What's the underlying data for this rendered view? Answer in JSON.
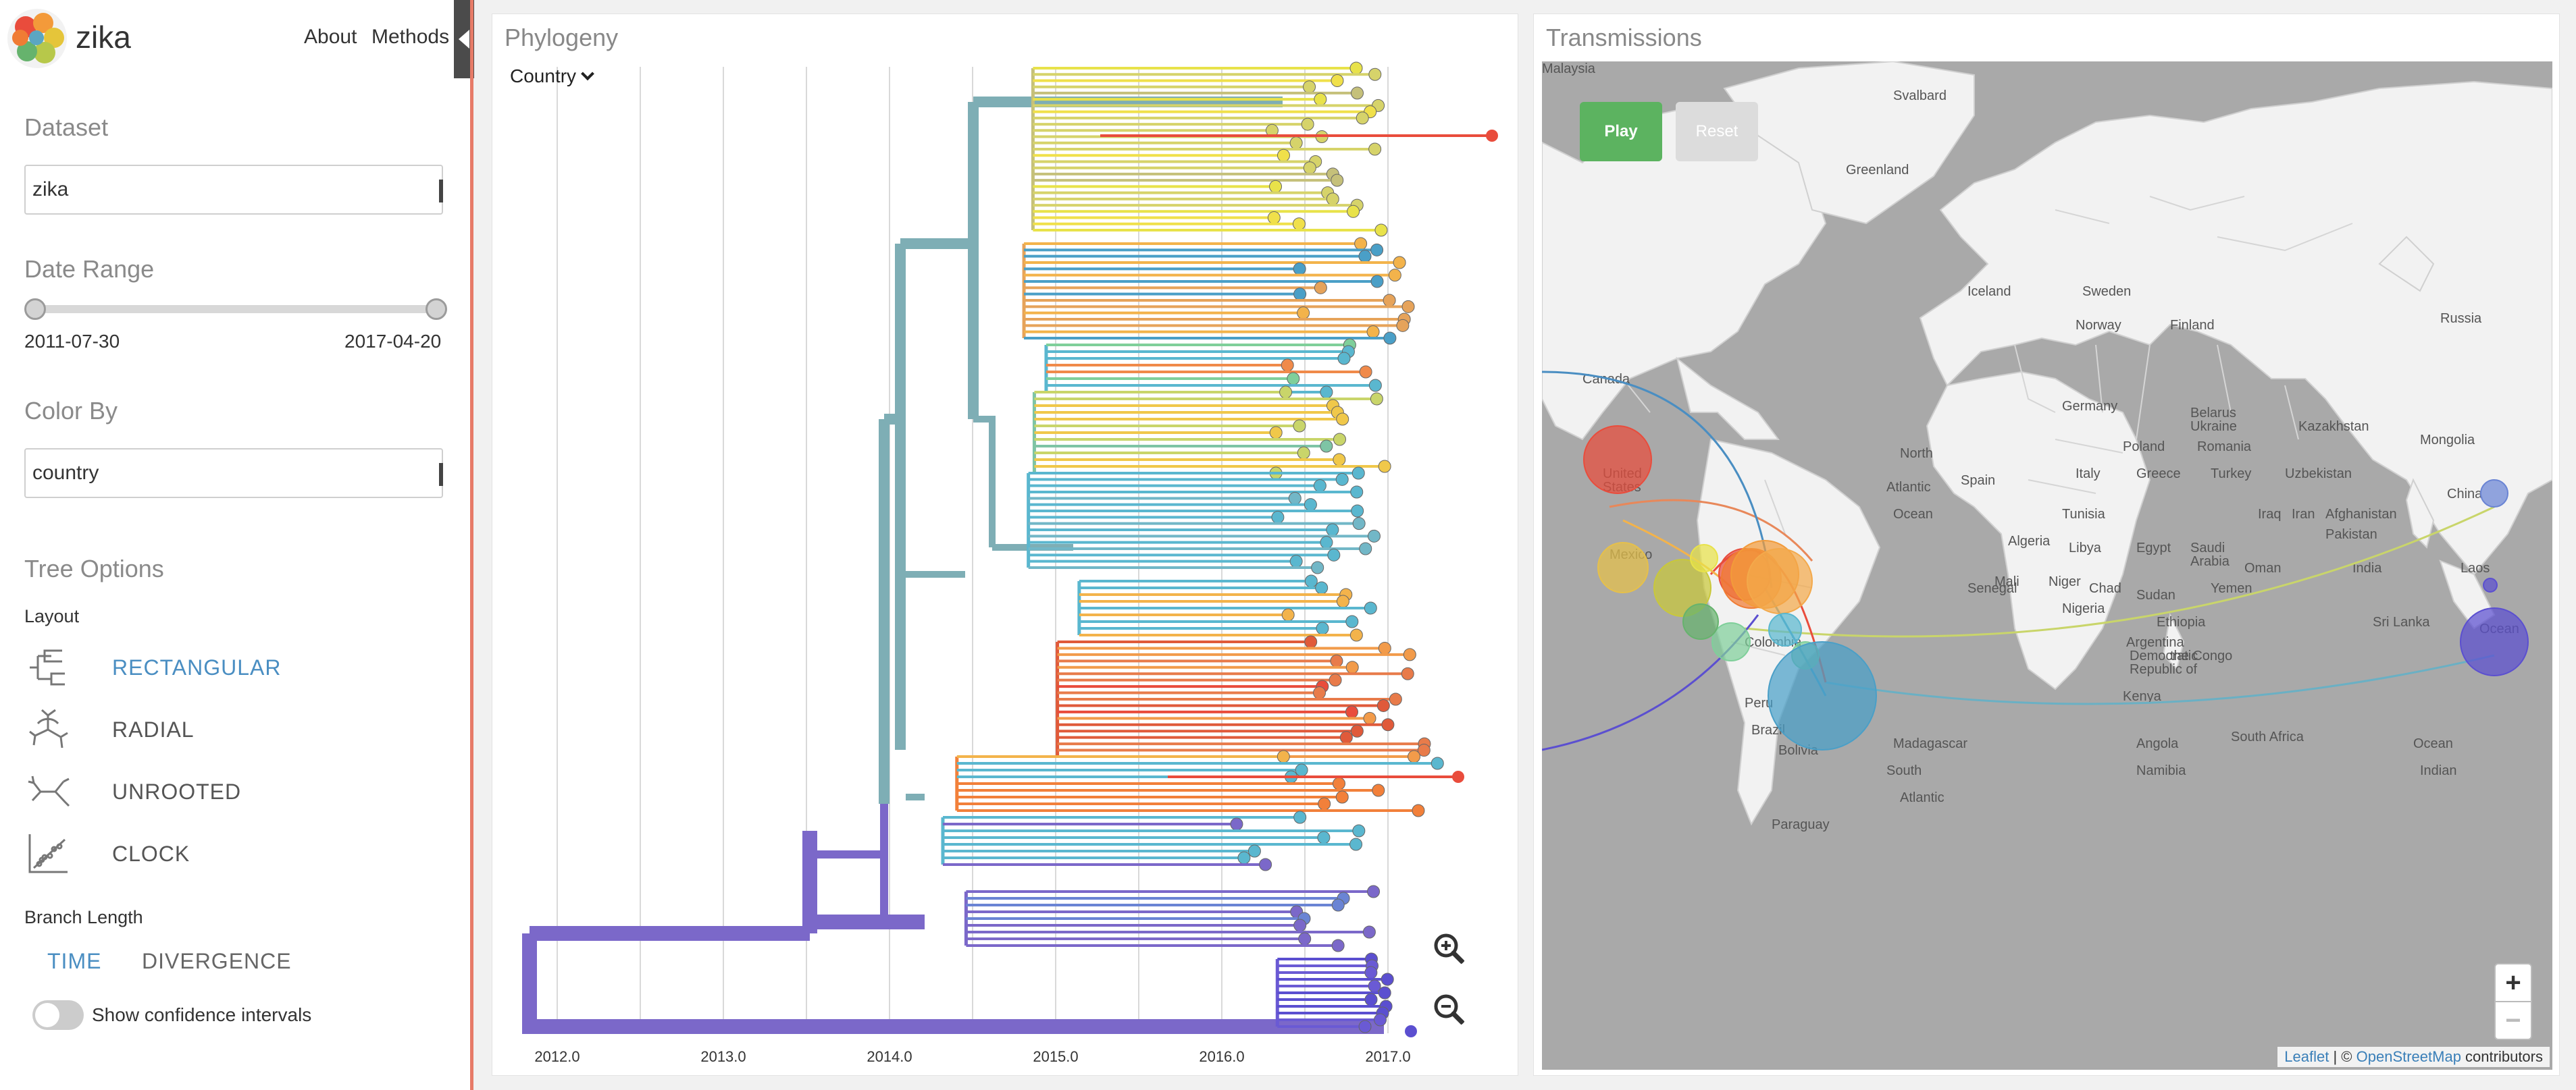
{
  "app": {
    "title": "zika",
    "nav": {
      "about": "About",
      "methods": "Methods"
    }
  },
  "sidebar": {
    "dataset_header": "Dataset",
    "dataset_value": "zika",
    "date_range_header": "Date Range",
    "date_start": "2011-07-30",
    "date_end": "2017-04-20",
    "color_by_header": "Color By",
    "color_by_value": "country",
    "tree_options_header": "Tree Options",
    "layout_label": "Layout",
    "layouts": [
      {
        "label": "RECTANGULAR",
        "icon": "rectangular-tree-icon",
        "active": true
      },
      {
        "label": "RADIAL",
        "icon": "radial-tree-icon",
        "active": false
      },
      {
        "label": "UNROOTED",
        "icon": "unrooted-tree-icon",
        "active": false
      },
      {
        "label": "CLOCK",
        "icon": "clock-scatter-icon",
        "active": false
      }
    ],
    "branch_length_label": "Branch Length",
    "branch_time": "TIME",
    "branch_divergence": "DIVERGENCE",
    "confidence_label": "Show confidence intervals",
    "confidence_on": false
  },
  "phylogeny": {
    "title": "Phylogeny",
    "color_dropdown": "Country",
    "x_ticks": [
      "2012.0",
      "2013.0",
      "2014.0",
      "2015.0",
      "2016.0",
      "2017.0"
    ],
    "zoom_in_icon": "zoom-in-icon",
    "zoom_out_icon": "zoom-out-icon"
  },
  "transmissions": {
    "title": "Transmissions",
    "play_label": "Play",
    "reset_label": "Reset",
    "zoom_in_label": "+",
    "zoom_out_label": "−",
    "attribution_leaflet": "Leaflet",
    "attribution_sep": " | © ",
    "attribution_osm": "OpenStreetMap",
    "attribution_suffix": " contributors",
    "map_labels": [
      "Svalbard",
      "Greenland",
      "Iceland",
      "Sweden",
      "Norway",
      "Finland",
      "Russia",
      "Canada",
      "Germany",
      "Belarus",
      "Ukraine",
      "Kazakhstan",
      "Mongolia",
      "Poland",
      "Romania",
      "Spain",
      "Italy",
      "Greece",
      "Turkey",
      "Uzbekistan",
      "North",
      "Atlantic",
      "Ocean",
      "Tunisia",
      "Iraq",
      "Iran",
      "Afghanistan",
      "Pakistan",
      "Algeria",
      "Libya",
      "Egypt",
      "Saudi",
      "Arabia",
      "Oman",
      "India",
      "Mexico",
      "Senegal",
      "Mali",
      "Niger",
      "Chad",
      "Sudan",
      "Yemen",
      "Nigeria",
      "Ethiopia",
      "Sri Lanka",
      "Laos",
      "China",
      "United",
      "States",
      "Colombia",
      "Peru",
      "Brazil",
      "Bolivia",
      "Paraguay",
      "Argentina",
      "Democratic",
      "Republic of",
      "the Congo",
      "Kenya",
      "Angola",
      "Namibia",
      "South Africa",
      "Madagascar",
      "South",
      "Atlantic",
      "Ocean",
      "Indian",
      "Ocean",
      "Malaysia"
    ]
  },
  "colors": {
    "accent": "#4a8ec2",
    "sidebar_edge": "#e77b68",
    "play_green": "#5cb360",
    "trunk_teal": "#7eaeb5",
    "trunk_purple": "#7b68c9",
    "map_land": "#f2f2f2",
    "map_sea": "#a9a9a9"
  }
}
